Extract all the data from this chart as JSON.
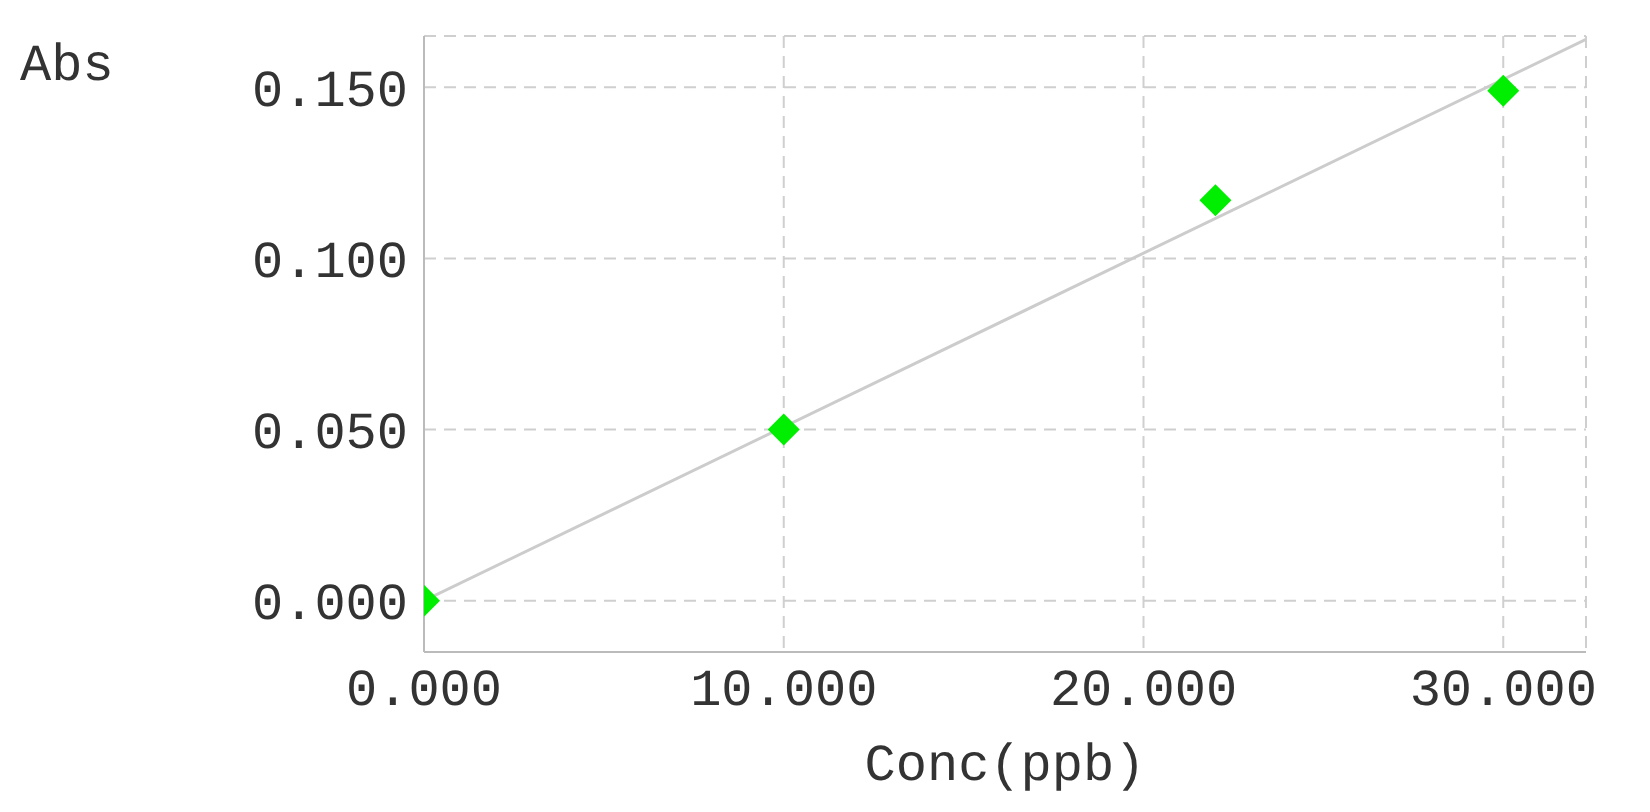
{
  "chart_data": {
    "type": "scatter",
    "xlabel": "Conc(ppb)",
    "ylabel": "Abs",
    "xlim": [
      0,
      32.3
    ],
    "ylim": [
      -0.015,
      0.165
    ],
    "xticks": [
      {
        "value": 0,
        "label": "0.000"
      },
      {
        "value": 10,
        "label": "10.000"
      },
      {
        "value": 20,
        "label": "20.000"
      },
      {
        "value": 30,
        "label": "30.000"
      }
    ],
    "yticks": [
      {
        "value": 0,
        "label": "0.000"
      },
      {
        "value": 0.05,
        "label": "0.050"
      },
      {
        "value": 0.1,
        "label": "0.100"
      },
      {
        "value": 0.15,
        "label": "0.150"
      }
    ],
    "grid": true,
    "series": [
      {
        "type": "line",
        "color": "#cccccc",
        "x": [
          0,
          32.3
        ],
        "values": [
          0,
          0.164
        ],
        "marker": "none",
        "line_style": "solid"
      },
      {
        "color": "#00ee00",
        "x": [
          0,
          10,
          22,
          30
        ],
        "values": [
          0,
          0.05,
          0.117,
          0.149
        ],
        "marker": "diamond"
      }
    ]
  }
}
